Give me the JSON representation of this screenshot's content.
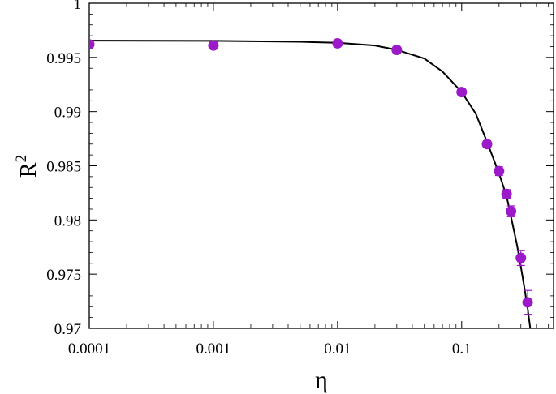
{
  "chart_data": {
    "type": "scatter",
    "title": "",
    "xlabel": "η",
    "ylabel_base": "R",
    "ylabel_sup": "2",
    "x_scale": "log",
    "xlim": [
      0.0001,
      0.55
    ],
    "ylim": [
      0.97,
      1.0
    ],
    "x_ticks": [
      0.0001,
      0.001,
      0.01,
      0.1
    ],
    "x_tick_labels": [
      "0.0001",
      "0.001",
      "0.01",
      "0.1"
    ],
    "y_ticks": [
      0.97,
      0.975,
      0.98,
      0.985,
      0.99,
      0.995,
      1.0
    ],
    "y_tick_labels": [
      "0.97",
      "0.975",
      "0.98",
      "0.985",
      "0.99",
      "0.995",
      "1"
    ],
    "grid": false,
    "legend": "none",
    "series": [
      {
        "kind": "points",
        "color": "#9b19c9",
        "x": [
          0.0001,
          0.001,
          0.01,
          0.03,
          0.1,
          0.16,
          0.2,
          0.23,
          0.25,
          0.3,
          0.34
        ],
        "y": [
          0.9962,
          0.9961,
          0.9963,
          0.9957,
          0.9918,
          0.987,
          0.9845,
          0.9824,
          0.9808,
          0.9765,
          0.9724
        ],
        "err": [
          0.0001,
          0.0001,
          0.0001,
          0.0001,
          0.0002,
          0.0003,
          0.0004,
          0.0004,
          0.0005,
          0.0007,
          0.0011
        ]
      },
      {
        "kind": "curve",
        "color": "#000000",
        "x": [
          0.0001,
          0.001,
          0.005,
          0.01,
          0.02,
          0.03,
          0.05,
          0.07,
          0.1,
          0.13,
          0.16,
          0.2,
          0.23,
          0.25,
          0.28,
          0.3,
          0.32,
          0.34,
          0.36
        ],
        "y": [
          0.99655,
          0.99653,
          0.99645,
          0.99635,
          0.9961,
          0.9957,
          0.9949,
          0.9937,
          0.9918,
          0.9898,
          0.9872,
          0.9843,
          0.9822,
          0.9803,
          0.9776,
          0.9757,
          0.9738,
          0.9718,
          0.9697
        ]
      }
    ]
  }
}
